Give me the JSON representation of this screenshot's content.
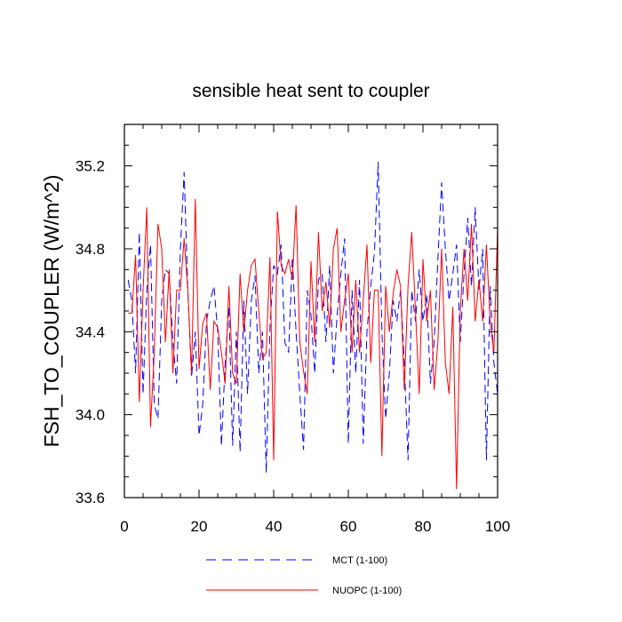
{
  "chart_data": {
    "type": "line",
    "title": "sensible heat sent to coupler",
    "xlabel": "",
    "ylabel": "FSH_TO_COUPLER  (W/m^2)",
    "xlim": [
      0,
      100
    ],
    "ylim": [
      33.6,
      35.4
    ],
    "xticks": [
      0,
      20,
      40,
      60,
      80,
      100
    ],
    "xtick_labels": [
      "0",
      "20",
      "40",
      "60",
      "80",
      "100"
    ],
    "yticks": [
      33.6,
      34.0,
      34.4,
      34.8,
      35.2
    ],
    "ytick_labels": [
      "33.6",
      "34.0",
      "34.4",
      "34.8",
      "35.2"
    ],
    "grid": false,
    "legend_position": "bottom",
    "series": [
      {
        "name": "MCT (1-100)",
        "color": "#0000ff",
        "dash": "dashed",
        "x": [
          1,
          2,
          3,
          4,
          5,
          6,
          7,
          8,
          9,
          10,
          11,
          12,
          13,
          14,
          15,
          16,
          17,
          18,
          19,
          20,
          21,
          22,
          23,
          24,
          25,
          26,
          27,
          28,
          29,
          30,
          31,
          32,
          33,
          34,
          35,
          36,
          37,
          38,
          39,
          40,
          41,
          42,
          43,
          44,
          45,
          46,
          47,
          48,
          49,
          50,
          51,
          52,
          53,
          54,
          55,
          56,
          57,
          58,
          59,
          60,
          61,
          62,
          63,
          64,
          65,
          66,
          67,
          68,
          69,
          70,
          71,
          72,
          73,
          74,
          75,
          76,
          77,
          78,
          79,
          80,
          81,
          82,
          83,
          84,
          85,
          86,
          87,
          88,
          89,
          90,
          91,
          92,
          93,
          94,
          95,
          96,
          97,
          98,
          99,
          100
        ],
        "values": [
          34.65,
          34.55,
          34.2,
          34.88,
          34.1,
          34.6,
          34.82,
          34.05,
          33.98,
          34.55,
          34.7,
          34.68,
          34.35,
          34.15,
          34.8,
          35.17,
          34.6,
          34.18,
          34.4,
          33.9,
          34.05,
          34.45,
          34.55,
          34.62,
          34.4,
          33.85,
          34.25,
          34.52,
          33.85,
          34.4,
          33.82,
          34.55,
          34.1,
          34.55,
          34.67,
          34.2,
          34.4,
          33.72,
          34.42,
          34.72,
          34.68,
          34.82,
          34.35,
          34.3,
          34.76,
          34.4,
          34.1,
          33.83,
          34.6,
          34.48,
          34.2,
          34.65,
          34.68,
          34.35,
          34.72,
          34.2,
          34.48,
          34.68,
          34.85,
          33.86,
          34.6,
          34.2,
          34.65,
          33.86,
          34.4,
          34.62,
          34.78,
          35.22,
          34.4,
          33.98,
          34.2,
          34.55,
          34.45,
          34.6,
          34.25,
          33.78,
          34.6,
          34.45,
          34.7,
          34.45,
          34.58,
          34.15,
          34.35,
          34.75,
          35.12,
          34.8,
          34.55,
          34.68,
          34.82,
          34.35,
          34.68,
          34.95,
          34.62,
          35.0,
          34.6,
          34.8,
          33.78,
          34.62,
          34.25,
          34.1
        ]
      },
      {
        "name": "NUOPC (1-100)",
        "color": "#ff0000",
        "dash": "solid",
        "x": [
          1,
          2,
          3,
          4,
          5,
          6,
          7,
          8,
          9,
          10,
          11,
          12,
          13,
          14,
          15,
          16,
          17,
          18,
          19,
          20,
          21,
          22,
          23,
          24,
          25,
          26,
          27,
          28,
          29,
          30,
          31,
          32,
          33,
          34,
          35,
          36,
          37,
          38,
          39,
          40,
          41,
          42,
          43,
          44,
          45,
          46,
          47,
          48,
          49,
          50,
          51,
          52,
          53,
          54,
          55,
          56,
          57,
          58,
          59,
          60,
          61,
          62,
          63,
          64,
          65,
          66,
          67,
          68,
          69,
          70,
          71,
          72,
          73,
          74,
          75,
          76,
          77,
          78,
          79,
          80,
          81,
          82,
          83,
          84,
          85,
          86,
          87,
          88,
          89,
          90,
          91,
          92,
          93,
          94,
          95,
          96,
          97,
          98,
          99,
          100
        ],
        "values": [
          34.49,
          34.49,
          34.77,
          34.06,
          34.6,
          35.0,
          33.94,
          34.3,
          34.92,
          34.8,
          34.35,
          34.7,
          34.2,
          34.6,
          34.6,
          34.85,
          34.6,
          34.2,
          35.04,
          34.22,
          34.44,
          34.49,
          34.12,
          34.45,
          34.42,
          34.3,
          34.15,
          34.62,
          34.2,
          34.15,
          34.68,
          34.4,
          34.6,
          34.72,
          34.75,
          34.5,
          34.27,
          34.3,
          34.76,
          33.78,
          34.98,
          34.72,
          34.68,
          34.75,
          34.65,
          35.01,
          34.35,
          34.21,
          34.1,
          34.74,
          34.35,
          34.88,
          34.5,
          34.64,
          34.42,
          34.8,
          34.9,
          34.4,
          34.55,
          34.68,
          34.3,
          34.65,
          34.3,
          34.55,
          34.82,
          34.25,
          34.6,
          34.6,
          33.8,
          34.62,
          34.4,
          34.58,
          34.7,
          34.62,
          34.12,
          34.62,
          34.88,
          34.5,
          34.1,
          34.75,
          34.45,
          34.6,
          34.12,
          34.35,
          34.8,
          34.25,
          34.1,
          34.52,
          33.64,
          34.5,
          34.8,
          34.55,
          34.92,
          34.45,
          34.65,
          34.45,
          34.82,
          34.45,
          34.3,
          34.9
        ]
      }
    ],
    "legend": [
      {
        "label": "MCT (1-100)",
        "color": "#0000ff",
        "dash": "dashed"
      },
      {
        "label": "NUOPC (1-100)",
        "color": "#ff0000",
        "dash": "solid"
      }
    ]
  }
}
